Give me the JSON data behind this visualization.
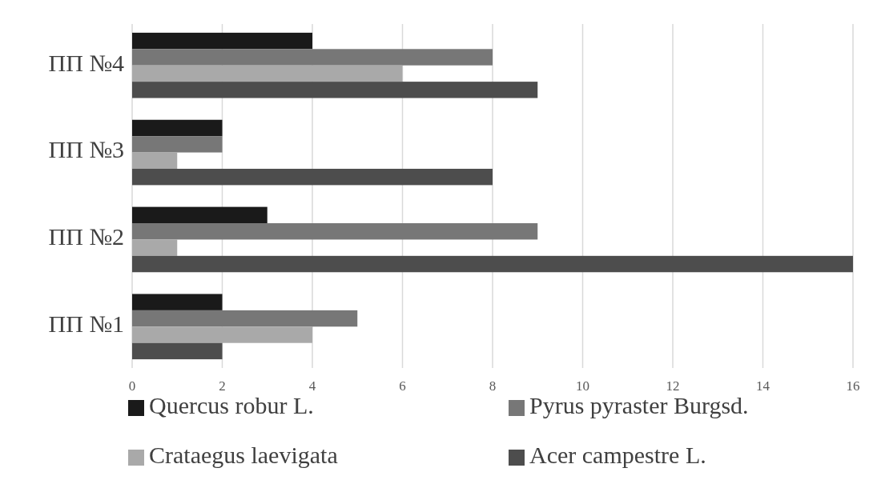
{
  "chart_data": {
    "type": "bar",
    "orientation": "horizontal",
    "categories": [
      "ПП №4",
      "ПП №3",
      "ПП №2",
      "ПП №1"
    ],
    "series": [
      {
        "name": "Quercus robur L.",
        "color": "#1a1a1a",
        "values": [
          4,
          2,
          3,
          2
        ]
      },
      {
        "name": "Pyrus pyraster Burgsd.",
        "color": "#777777",
        "values": [
          8,
          2,
          9,
          5
        ]
      },
      {
        "name": "Crataegus laevigata",
        "color": "#a9a9a9",
        "values": [
          6,
          1,
          1,
          4
        ]
      },
      {
        "name": "Acer campestre L.",
        "color": "#4d4d4d",
        "values": [
          9,
          8,
          16,
          2
        ]
      }
    ],
    "xlim": [
      0,
      16
    ],
    "xticks": [
      0,
      2,
      4,
      6,
      8,
      10,
      12,
      14,
      16
    ],
    "grid": "x",
    "legend": "bottom"
  }
}
